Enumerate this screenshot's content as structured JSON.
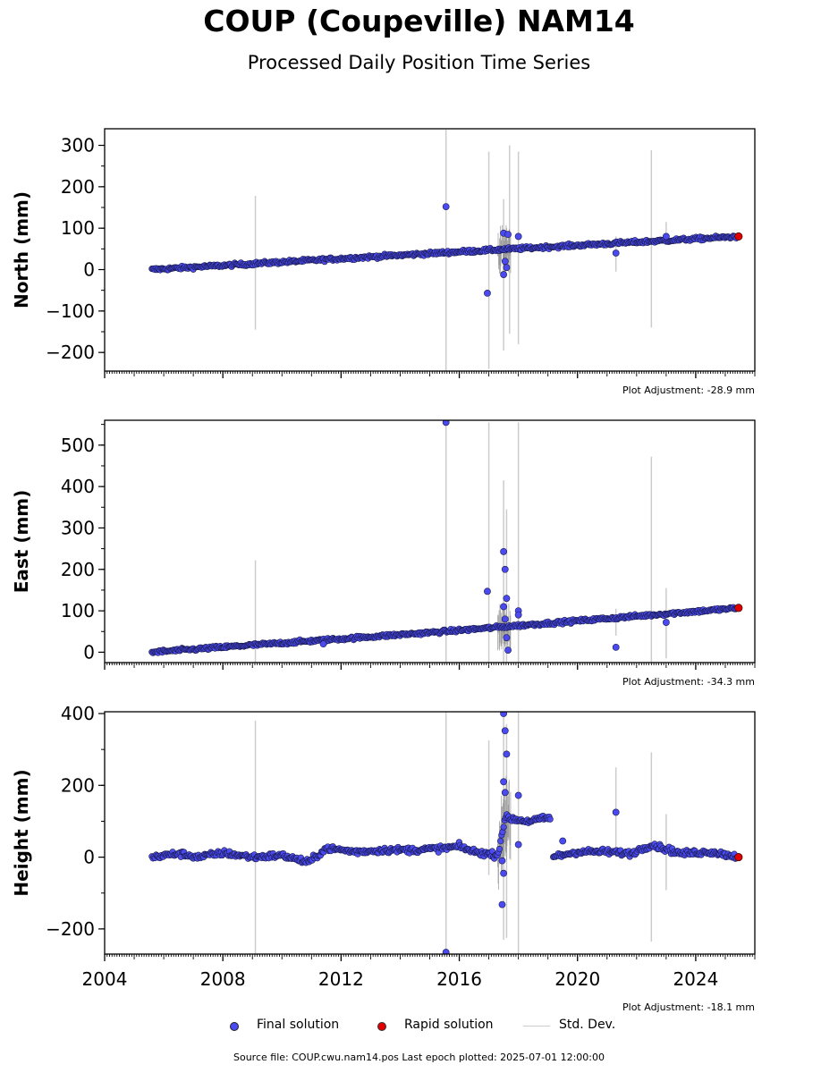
{
  "title": "COUP (Coupeville) NAM14",
  "subtitle": "Processed Daily Position Time Series",
  "source": "Source file: COUP.cwu.nam14.pos  Last epoch plotted: 2025-07-01 12:00:00",
  "legend": {
    "final": "Final solution",
    "rapid": "Rapid solution",
    "std": "Std. Dev."
  },
  "colors": {
    "final": "#4a4af0",
    "rapid": "#e00000",
    "std": "#cccccc"
  },
  "chart_data": [
    {
      "type": "scatter",
      "ylabel": "North (mm)",
      "adjustment": "Plot Adjustment: -28.9 mm",
      "xlim": [
        2004,
        2026
      ],
      "ylim": [
        -245,
        340
      ],
      "yticks": [
        -200,
        -100,
        0,
        100,
        200,
        300
      ],
      "xtick_labels": false,
      "trend": [
        [
          2005.6,
          0
        ],
        [
          2015.5,
          41
        ],
        [
          2025.5,
          80
        ]
      ],
      "offsets": [],
      "noise": 4,
      "outliers": [
        [
          2015.55,
          152
        ],
        [
          2016.95,
          -57
        ],
        [
          2017.5,
          88
        ],
        [
          2017.55,
          20
        ],
        [
          2017.6,
          5
        ],
        [
          2017.5,
          -12
        ],
        [
          2017.65,
          85
        ],
        [
          2018.0,
          80
        ],
        [
          2021.3,
          40
        ],
        [
          2023.0,
          80
        ]
      ],
      "std_bars": [
        [
          2009.1,
          -145,
          178
        ],
        [
          2015.55,
          -250,
          338
        ],
        [
          2017.0,
          -240,
          285
        ],
        [
          2017.5,
          -195,
          170
        ],
        [
          2017.7,
          -155,
          300
        ],
        [
          2018.0,
          -180,
          285
        ],
        [
          2021.3,
          -5,
          80
        ],
        [
          2022.5,
          -140,
          288
        ],
        [
          2023.0,
          60,
          115
        ]
      ],
      "rapid": [
        [
          2025.45,
          80
        ]
      ]
    },
    {
      "type": "scatter",
      "ylabel": "East (mm)",
      "adjustment": "Plot Adjustment: -34.3 mm",
      "xlim": [
        2004,
        2026
      ],
      "ylim": [
        -25,
        560
      ],
      "yticks": [
        0,
        100,
        200,
        300,
        400,
        500
      ],
      "xtick_labels": false,
      "trend": [
        [
          2005.6,
          0
        ],
        [
          2015.5,
          50
        ],
        [
          2025.5,
          107
        ]
      ],
      "offsets": [],
      "noise": 4,
      "outliers": [
        [
          2015.55,
          555
        ],
        [
          2016.95,
          147
        ],
        [
          2017.5,
          243
        ],
        [
          2017.55,
          200
        ],
        [
          2017.6,
          130
        ],
        [
          2017.5,
          110
        ],
        [
          2017.55,
          80
        ],
        [
          2017.6,
          35
        ],
        [
          2017.65,
          5
        ],
        [
          2018.0,
          100
        ],
        [
          2018.0,
          90
        ],
        [
          2021.3,
          12
        ],
        [
          2023.0,
          72
        ],
        [
          2011.4,
          20
        ]
      ],
      "std_bars": [
        [
          2009.1,
          -25,
          222
        ],
        [
          2015.55,
          -25,
          555
        ],
        [
          2017.0,
          -25,
          555
        ],
        [
          2017.5,
          -25,
          415
        ],
        [
          2017.6,
          -25,
          345
        ],
        [
          2018.0,
          -25,
          555
        ],
        [
          2021.3,
          40,
          105
        ],
        [
          2022.5,
          -25,
          472
        ],
        [
          2023.0,
          -15,
          155
        ]
      ],
      "rapid": [
        [
          2025.45,
          107
        ]
      ]
    },
    {
      "type": "scatter",
      "ylabel": "Height (mm)",
      "adjustment": "Plot Adjustment: -18.1 mm",
      "xlim": [
        2004,
        2026
      ],
      "ylim": [
        -270,
        405
      ],
      "yticks": [
        -200,
        0,
        200,
        400
      ],
      "xtick_labels": true,
      "xticks": [
        2004,
        2008,
        2012,
        2016,
        2020,
        2024
      ],
      "height_segments": [
        [
          2005.6,
          0
        ],
        [
          2006.5,
          10
        ],
        [
          2007.2,
          0
        ],
        [
          2008.0,
          12
        ],
        [
          2009.0,
          0
        ],
        [
          2010.0,
          5
        ],
        [
          2010.9,
          -15
        ],
        [
          2011.5,
          25
        ],
        [
          2012.5,
          15
        ],
        [
          2013.5,
          20
        ],
        [
          2014.5,
          20
        ],
        [
          2015.5,
          25
        ],
        [
          2016.0,
          30
        ],
        [
          2016.5,
          15
        ],
        [
          2017.3,
          5
        ],
        [
          2017.55,
          110
        ],
        [
          2018.3,
          100
        ],
        [
          2019.1,
          110
        ],
        [
          2019.15,
          0
        ],
        [
          2020.0,
          15
        ],
        [
          2021.0,
          15
        ],
        [
          2021.8,
          10
        ],
        [
          2022.5,
          35
        ],
        [
          2023.5,
          10
        ],
        [
          2024.5,
          15
        ],
        [
          2025.5,
          0
        ]
      ],
      "noise": 8,
      "outliers": [
        [
          2015.55,
          -265
        ],
        [
          2017.5,
          400
        ],
        [
          2017.55,
          352
        ],
        [
          2017.6,
          287
        ],
        [
          2017.5,
          210
        ],
        [
          2017.55,
          180
        ],
        [
          2017.5,
          -45
        ],
        [
          2017.45,
          -132
        ],
        [
          2017.45,
          -10
        ],
        [
          2018.0,
          172
        ],
        [
          2018.0,
          35
        ],
        [
          2019.5,
          45
        ],
        [
          2021.3,
          125
        ]
      ],
      "std_bars": [
        [
          2009.1,
          -270,
          380
        ],
        [
          2015.55,
          -270,
          405
        ],
        [
          2017.0,
          -50,
          325
        ],
        [
          2017.5,
          -230,
          405
        ],
        [
          2017.6,
          -225,
          370
        ],
        [
          2018.0,
          -270,
          405
        ],
        [
          2021.3,
          0,
          250
        ],
        [
          2022.5,
          -235,
          292
        ],
        [
          2023.0,
          -92,
          120
        ]
      ],
      "rapid": [
        [
          2025.45,
          0
        ]
      ]
    }
  ]
}
